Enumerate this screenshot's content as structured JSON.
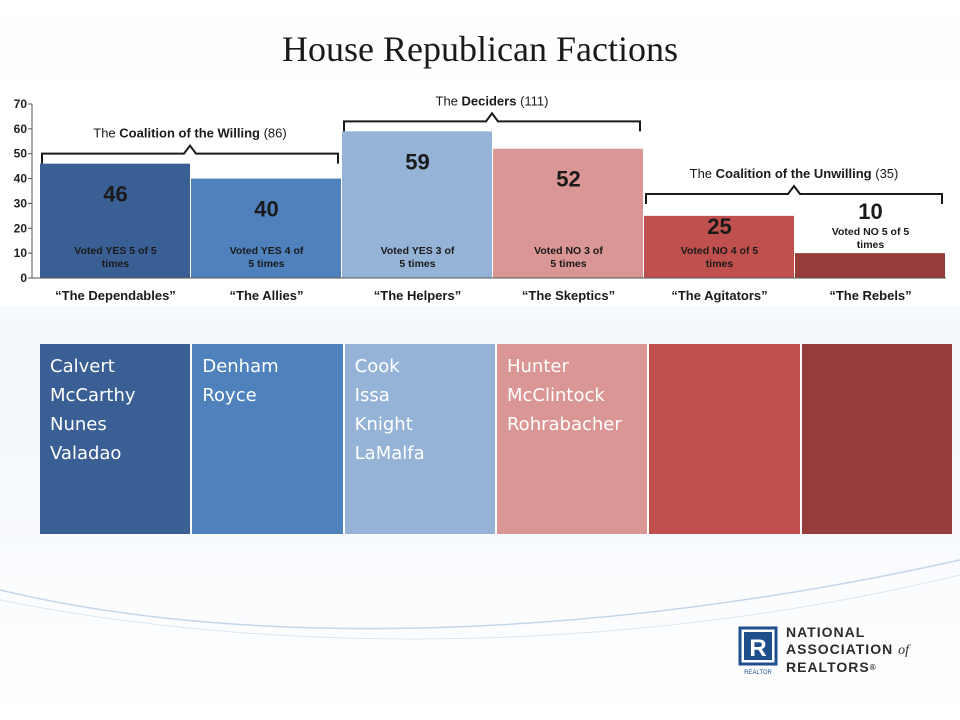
{
  "slide": {
    "title": "House Republican Factions"
  },
  "chart_data": {
    "type": "bar",
    "ylim": [
      0,
      70
    ],
    "yticks": [
      0,
      10,
      20,
      30,
      40,
      50,
      60,
      70
    ],
    "grid": false,
    "categories": [
      "“The Dependables”",
      "“The Allies”",
      "“The Helpers”",
      "“The Skeptics”",
      "“The Agitators”",
      "“The Rebels”"
    ],
    "values": [
      46,
      40,
      59,
      52,
      25,
      10
    ],
    "value_labels": [
      "46",
      "40",
      "59",
      "52",
      "25",
      "10"
    ],
    "bar_notes": [
      [
        "Voted YES 5 of 5",
        "times"
      ],
      [
        "Voted YES 4 of",
        "5 times"
      ],
      [
        "Voted YES 3 of",
        "5 times"
      ],
      [
        "Voted NO 3 of",
        "5 times"
      ],
      [
        "Voted NO 4 of 5",
        "times"
      ],
      [
        "Voted NO 5 of 5",
        "times"
      ]
    ],
    "colors": [
      "#3a5f95",
      "#4f81bd",
      "#95b3d7",
      "#da9694",
      "#c0504d",
      "#963c3a"
    ],
    "groups": [
      {
        "pre": "The ",
        "bold": "Coalition of the Willing",
        "post": " (86)",
        "from": 0,
        "to": 1
      },
      {
        "pre": "The ",
        "bold": "Deciders",
        "post": " (111)",
        "from": 2,
        "to": 3
      },
      {
        "pre": "The ",
        "bold": "Coalition of the Unwilling",
        "post": " (35)",
        "from": 4,
        "to": 5
      }
    ]
  },
  "names_table": {
    "columns": [
      {
        "names": [
          "Calvert",
          "McCarthy",
          "Nunes",
          "Valadao"
        ],
        "color": "#3a5f95"
      },
      {
        "names": [
          "Denham",
          "Royce"
        ],
        "color": "#4f81bd"
      },
      {
        "names": [
          "Cook",
          "Issa",
          "Knight",
          "LaMalfa"
        ],
        "color": "#95b3d7"
      },
      {
        "names": [
          "Hunter",
          "McClintock",
          "Rohrabacher"
        ],
        "color": "#da9694"
      },
      {
        "names": [],
        "color": "#c0504d"
      },
      {
        "names": [],
        "color": "#963c3a"
      }
    ]
  },
  "logo": {
    "line1": "NATIONAL",
    "line2": "ASSOCIATION",
    "line2_of": "of",
    "line3": "REALTORS",
    "mark_letter": "R",
    "mark_caption": "REALTOR",
    "color": "#1f4e8c"
  }
}
